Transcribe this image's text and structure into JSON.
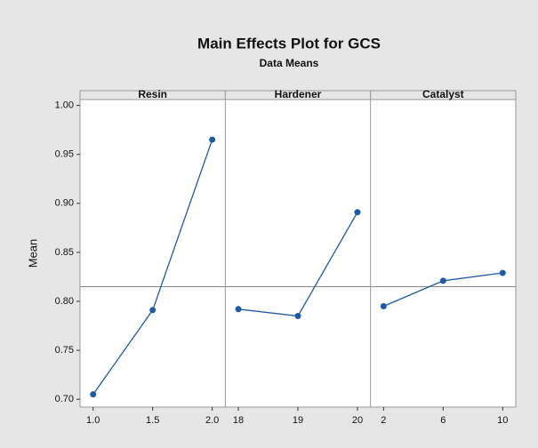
{
  "chart_data": {
    "type": "line",
    "title": "Main Effects Plot for GCS",
    "subtitle": "Data Means",
    "ylabel": "Mean",
    "color": "#1f5aa6",
    "reference_line": 0.815,
    "ylim": [
      0.692,
      1.006
    ],
    "yticks": [
      {
        "value": 0.7,
        "label": "0.70"
      },
      {
        "value": 0.75,
        "label": "0.75"
      },
      {
        "value": 0.8,
        "label": "0.80"
      },
      {
        "value": 0.85,
        "label": "0.85"
      },
      {
        "value": 0.9,
        "label": "0.90"
      },
      {
        "value": 0.95,
        "label": "0.95"
      },
      {
        "value": 1.0,
        "label": "1.00"
      }
    ],
    "panels": [
      {
        "title": "Resin",
        "categories": [
          "1.0",
          "1.5",
          "2.0"
        ],
        "values": [
          0.705,
          0.791,
          0.965
        ]
      },
      {
        "title": "Hardener",
        "categories": [
          "18",
          "19",
          "20"
        ],
        "values": [
          0.792,
          0.785,
          0.891
        ]
      },
      {
        "title": "Catalyst",
        "categories": [
          "2",
          "6",
          "10"
        ],
        "values": [
          0.795,
          0.821,
          0.829
        ]
      }
    ]
  }
}
